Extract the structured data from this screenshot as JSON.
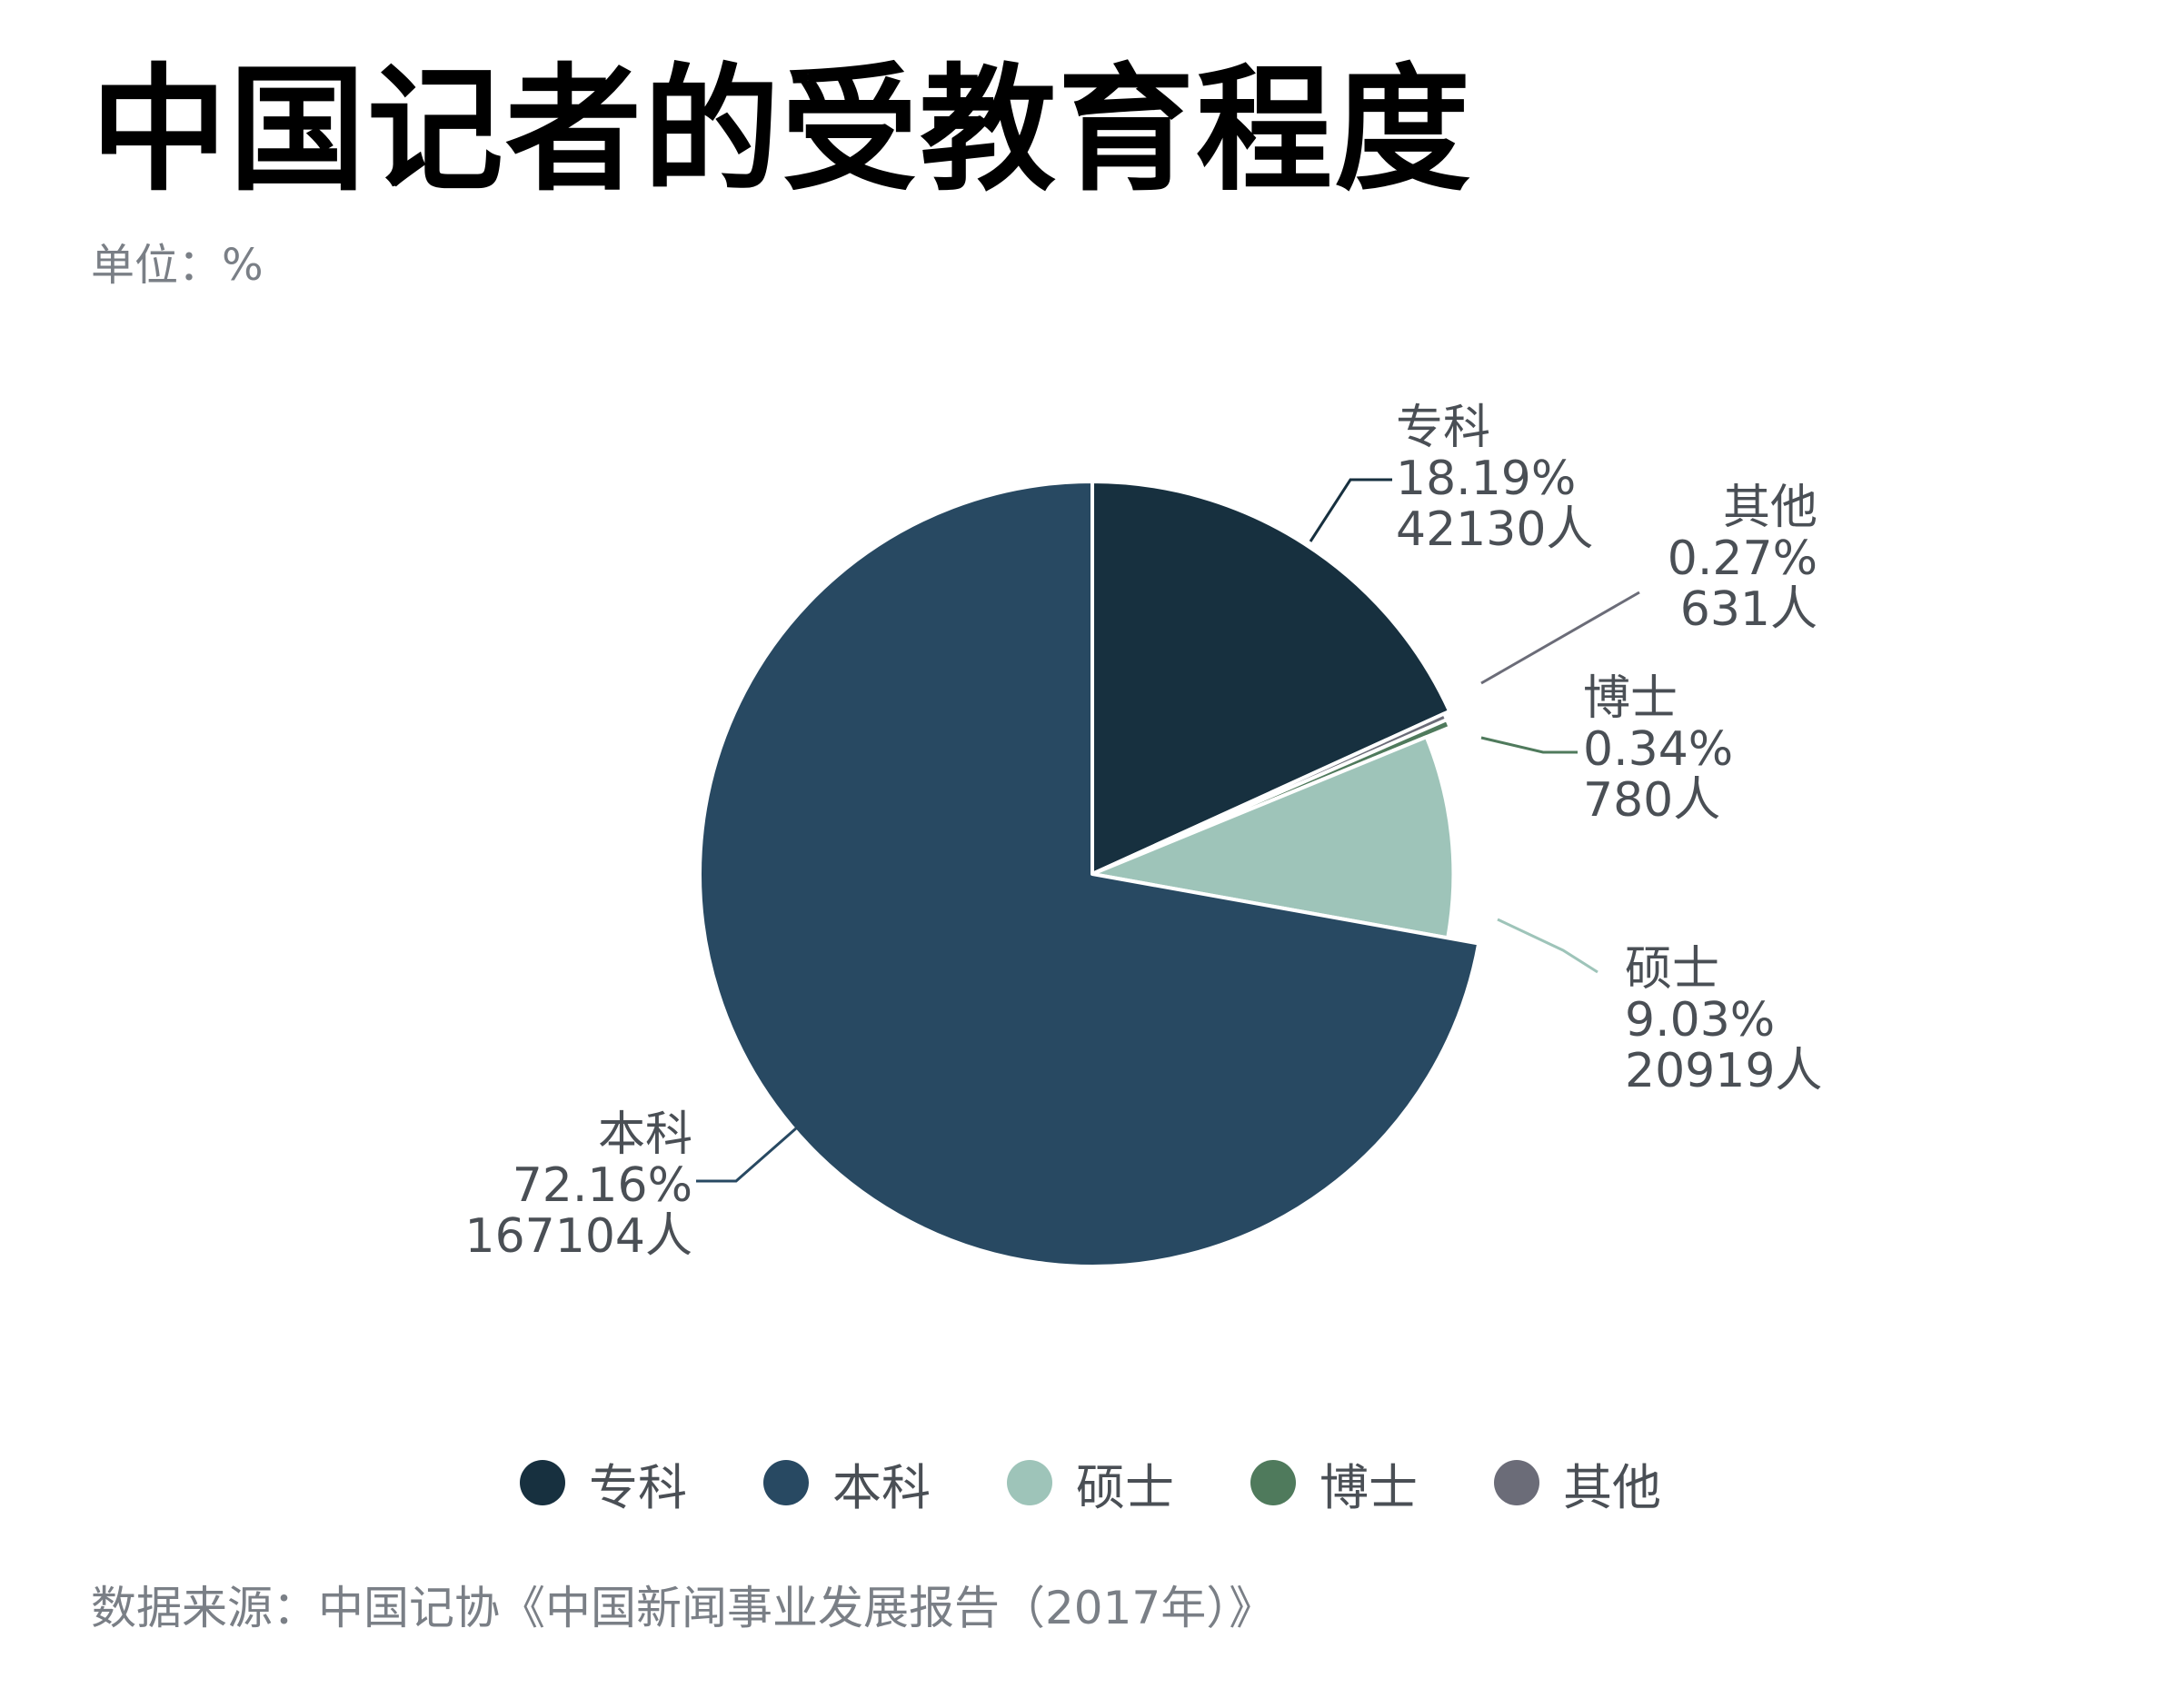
{
  "title": "中国记者的受教育程度",
  "subtitle": "单位：%",
  "source": "数据来源：中国记协《中国新闻事业发展报告（2017年）》",
  "chart_data": {
    "type": "pie",
    "unit": "%",
    "slices": [
      {
        "label": "专科",
        "value": 18.19,
        "value_text": "18.19%",
        "count": 42130,
        "count_text": "42130人",
        "color": "#17303f"
      },
      {
        "label": "其他",
        "value": 0.27,
        "value_text": "0.27%",
        "count": 631,
        "count_text": "631人",
        "color": "#6b6c78"
      },
      {
        "label": "博士",
        "value": 0.34,
        "value_text": "0.34%",
        "count": 780,
        "count_text": "780人",
        "color": "#4f7a5c"
      },
      {
        "label": "硕士",
        "value": 9.03,
        "value_text": "9.03%",
        "count": 20919,
        "count_text": "20919人",
        "color": "#9ec4b9"
      },
      {
        "label": "本科",
        "value": 72.16,
        "value_text": "72.16%",
        "count": 167104,
        "count_text": "167104人",
        "color": "#284962"
      }
    ],
    "legend": {
      "position": "bottom",
      "entries": [
        {
          "label": "专科",
          "color": "#17303f"
        },
        {
          "label": "本科",
          "color": "#284962"
        },
        {
          "label": "硕士",
          "color": "#9ec4b9"
        },
        {
          "label": "博士",
          "color": "#4f7a5c"
        },
        {
          "label": "其他",
          "color": "#6b6c78"
        }
      ]
    }
  }
}
